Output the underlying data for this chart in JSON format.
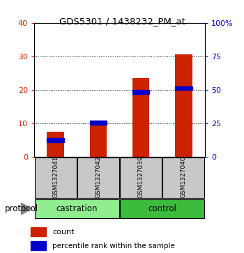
{
  "title": "GDS5301 / 1438232_PM_at",
  "samples": [
    "GSM1327041",
    "GSM1327042",
    "GSM1327039",
    "GSM1327040"
  ],
  "red_values": [
    7.5,
    10.3,
    23.5,
    30.5
  ],
  "blue_values": [
    5.0,
    10.2,
    19.3,
    20.5
  ],
  "left_ylim": [
    0,
    40
  ],
  "right_ylim": [
    0,
    100
  ],
  "left_yticks": [
    0,
    10,
    20,
    30,
    40
  ],
  "right_yticks": [
    0,
    25,
    50,
    75,
    100
  ],
  "right_yticklabels": [
    "0",
    "25",
    "50",
    "75",
    "100%"
  ],
  "groups": [
    {
      "label": "castration",
      "indices": [
        0,
        1
      ],
      "color": "#90EE90"
    },
    {
      "label": "control",
      "indices": [
        2,
        3
      ],
      "color": "#3CBB3C"
    }
  ],
  "bar_color": "#CC2200",
  "blue_color": "#0000CC",
  "bar_width": 0.4,
  "left_tick_color": "#CC2200",
  "right_tick_color": "#0000BB",
  "bg_color": "#C8C8C8",
  "grid_color": "#000000",
  "legend_count_color": "#CC2200",
  "legend_blue_color": "#0000CC"
}
